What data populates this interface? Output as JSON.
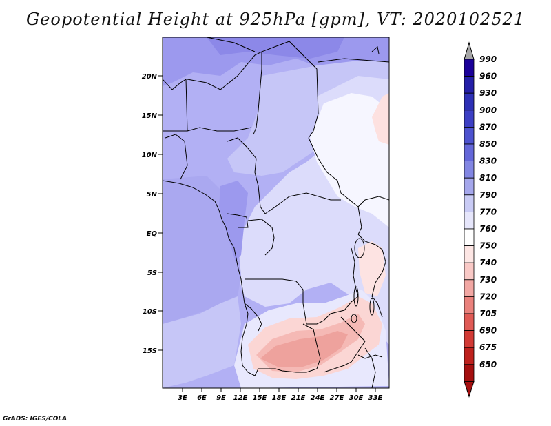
{
  "title": "Geopotential Height at 925hPa [gpm], VT: 2020102521",
  "footer": "GrADS: IGES/COLA",
  "map": {
    "lat_labels": [
      "20N",
      "15N",
      "10N",
      "5N",
      "EQ",
      "5S",
      "10S",
      "15S"
    ],
    "lon_labels": [
      "3E",
      "6E",
      "9E",
      "12E",
      "15E",
      "18E",
      "21E",
      "24E",
      "27E",
      "30E",
      "33E"
    ]
  },
  "colorbar": {
    "levels": [
      "990",
      "960",
      "930",
      "900",
      "870",
      "850",
      "830",
      "810",
      "790",
      "770",
      "760",
      "750",
      "740",
      "730",
      "720",
      "705",
      "690",
      "675",
      "650"
    ],
    "colors": [
      "#1a0099",
      "#241fa8",
      "#2d30b6",
      "#3c3fc4",
      "#4d52cf",
      "#6467d9",
      "#8286e3",
      "#a5a7ec",
      "#c9cbf5",
      "#e6e6fb",
      "#ffffff",
      "#fde6e4",
      "#f9c9c6",
      "#f2a7a3",
      "#ea817c",
      "#e05a55",
      "#d23a35",
      "#be211d",
      "#a50f0f"
    ],
    "top_arrow_color": "#a6a6a6",
    "bottom_arrow_color": "#a50f0f"
  }
}
